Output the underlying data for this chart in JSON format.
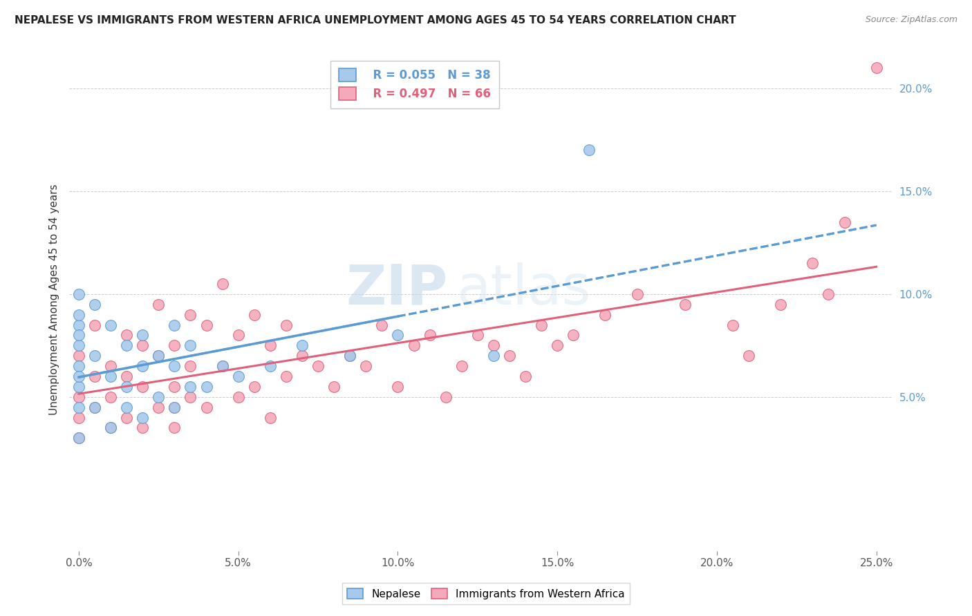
{
  "title": "NEPALESE VS IMMIGRANTS FROM WESTERN AFRICA UNEMPLOYMENT AMONG AGES 45 TO 54 YEARS CORRELATION CHART",
  "source": "Source: ZipAtlas.com",
  "ylabel": "Unemployment Among Ages 45 to 54 years",
  "xlabel_vals": [
    0.0,
    5.0,
    10.0,
    15.0,
    20.0,
    25.0
  ],
  "ylabel_vals": [
    5.0,
    10.0,
    15.0,
    20.0
  ],
  "xlim": [
    -0.3,
    25.5
  ],
  "ylim": [
    -2.5,
    22
  ],
  "nepalese_R": 0.055,
  "nepalese_N": 38,
  "western_africa_R": 0.497,
  "western_africa_N": 66,
  "nepalese_color": "#A8CAEA",
  "western_africa_color": "#F4AABB",
  "nepalese_edge_color": "#5B9BD5",
  "western_africa_edge_color": "#E0607A",
  "trend_nepalese_color": "#5B9BD5",
  "trend_western_africa_color": "#E0607A",
  "watermark_zip": "ZIP",
  "watermark_atlas": "atlas",
  "background_color": "#FFFFFF",
  "nepalese_x": [
    0.0,
    0.0,
    0.0,
    0.0,
    0.0,
    0.0,
    0.0,
    0.0,
    0.0,
    0.0,
    0.5,
    0.5,
    0.5,
    1.0,
    1.0,
    1.0,
    1.5,
    1.5,
    1.5,
    2.0,
    2.0,
    2.0,
    2.5,
    2.5,
    3.0,
    3.0,
    3.0,
    3.5,
    3.5,
    4.0,
    4.5,
    5.0,
    6.0,
    7.0,
    8.5,
    10.0,
    13.0,
    16.0
  ],
  "nepalese_y": [
    3.0,
    4.5,
    5.5,
    6.5,
    7.5,
    8.5,
    9.0,
    10.0,
    8.0,
    6.0,
    4.5,
    7.0,
    9.5,
    3.5,
    6.0,
    8.5,
    4.5,
    7.5,
    5.5,
    4.0,
    6.5,
    8.0,
    5.0,
    7.0,
    4.5,
    6.5,
    8.5,
    5.5,
    7.5,
    5.5,
    6.5,
    6.0,
    6.5,
    7.5,
    7.0,
    8.0,
    7.0,
    17.0
  ],
  "western_africa_x": [
    0.0,
    0.0,
    0.0,
    0.0,
    0.5,
    0.5,
    0.5,
    1.0,
    1.0,
    1.0,
    1.5,
    1.5,
    1.5,
    2.0,
    2.0,
    2.0,
    2.5,
    2.5,
    2.5,
    3.0,
    3.0,
    3.0,
    3.0,
    3.5,
    3.5,
    3.5,
    4.0,
    4.0,
    4.5,
    4.5,
    5.0,
    5.0,
    5.5,
    5.5,
    6.0,
    6.0,
    6.5,
    6.5,
    7.0,
    7.5,
    8.0,
    8.5,
    9.0,
    9.5,
    10.0,
    10.5,
    11.0,
    11.5,
    12.0,
    12.5,
    13.0,
    13.5,
    14.0,
    14.5,
    15.0,
    15.5,
    16.5,
    17.5,
    19.0,
    20.5,
    21.0,
    22.0,
    23.0,
    23.5,
    24.0,
    25.0
  ],
  "western_africa_y": [
    3.0,
    5.0,
    7.0,
    4.0,
    6.0,
    4.5,
    8.5,
    3.5,
    6.5,
    5.0,
    4.0,
    8.0,
    6.0,
    3.5,
    5.5,
    7.5,
    4.5,
    7.0,
    9.5,
    3.5,
    5.5,
    7.5,
    4.5,
    6.5,
    9.0,
    5.0,
    4.5,
    8.5,
    6.5,
    10.5,
    5.0,
    8.0,
    5.5,
    9.0,
    4.0,
    7.5,
    6.0,
    8.5,
    7.0,
    6.5,
    5.5,
    7.0,
    6.5,
    8.5,
    5.5,
    7.5,
    8.0,
    5.0,
    6.5,
    8.0,
    7.5,
    7.0,
    6.0,
    8.5,
    7.5,
    8.0,
    9.0,
    10.0,
    9.5,
    8.5,
    7.0,
    9.5,
    11.5,
    10.0,
    13.5,
    21.0
  ]
}
